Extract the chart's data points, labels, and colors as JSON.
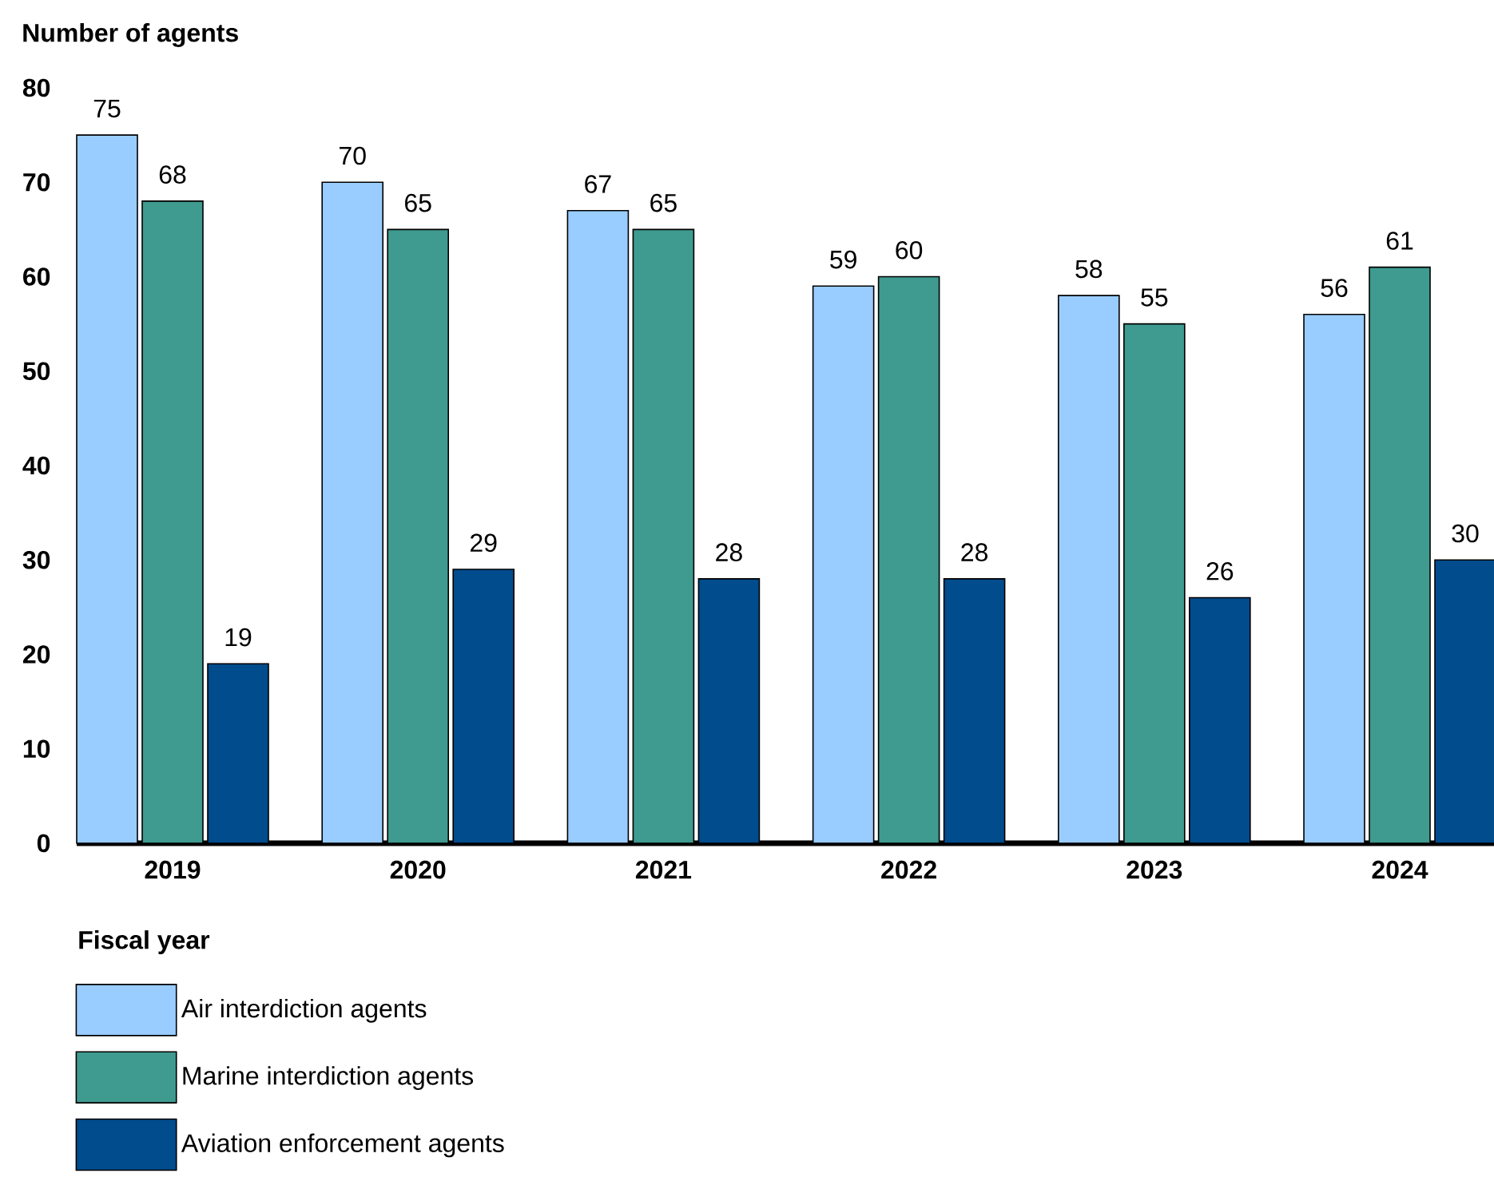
{
  "chart_data": {
    "type": "bar",
    "ylabel": "Number of agents",
    "xlabel": "Fiscal year",
    "categories": [
      "2019",
      "2020",
      "2021",
      "2022",
      "2023",
      "2024"
    ],
    "series": [
      {
        "name": "Air interdiction agents",
        "color": "#99ccff",
        "values": [
          75,
          70,
          67,
          59,
          58,
          56
        ]
      },
      {
        "name": "Marine interdiction agents",
        "color": "#3f9a8f",
        "values": [
          68,
          65,
          65,
          60,
          55,
          61
        ]
      },
      {
        "name": "Aviation enforcement agents",
        "color": "#004c8c",
        "values": [
          19,
          29,
          28,
          28,
          26,
          30
        ]
      }
    ],
    "ylim": [
      0,
      80
    ],
    "yticks": [
      0,
      10,
      20,
      30,
      40,
      50,
      60,
      70,
      80
    ],
    "data_labels": true,
    "legend": "bottom left",
    "grid": false
  }
}
